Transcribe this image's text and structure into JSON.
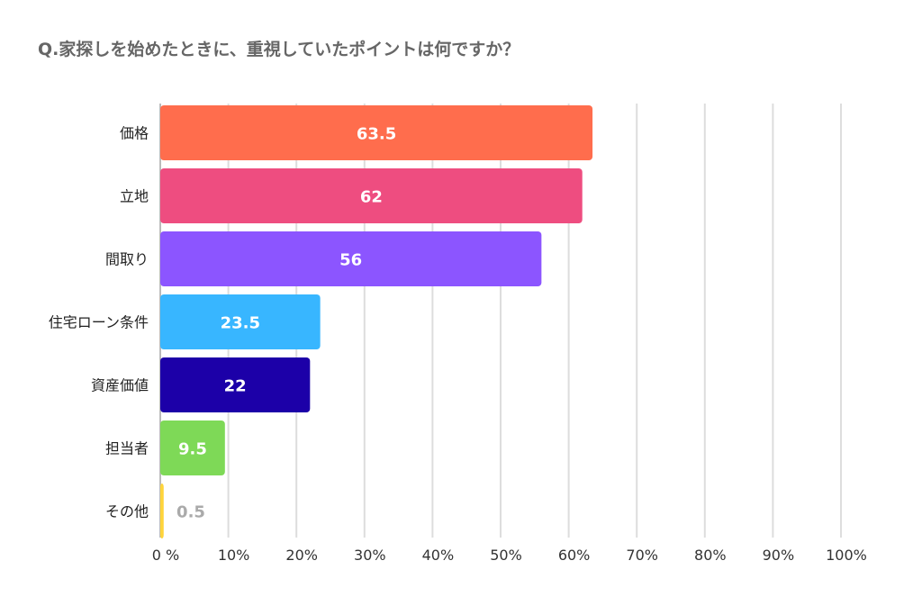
{
  "chart_data": {
    "type": "bar",
    "orientation": "horizontal",
    "title": "Q.家探しを始めたときに、重視していたポイントは何ですか？",
    "categories": [
      "価格",
      "立地",
      "間取り",
      "住宅ローン条件",
      "資産価値",
      "担当者",
      "その他"
    ],
    "values": [
      63.5,
      62,
      56,
      23.5,
      22,
      9.5,
      0.5
    ],
    "value_labels": [
      "63.5",
      "62",
      "56",
      "23.5",
      "22",
      "9.5",
      "0.5"
    ],
    "colors": [
      "#FF6D4D",
      "#EE4D80",
      "#8C55FF",
      "#38B6FF",
      "#1C00A8",
      "#7ED957",
      "#FFD43B"
    ],
    "xlim": [
      0,
      100
    ],
    "xticks": [
      "0 %",
      "10%",
      "20%",
      "30%",
      "40%",
      "50%",
      "60%",
      "70%",
      "80%",
      "90%",
      "100%"
    ],
    "xlabel": "",
    "ylabel": "",
    "grid": true
  }
}
